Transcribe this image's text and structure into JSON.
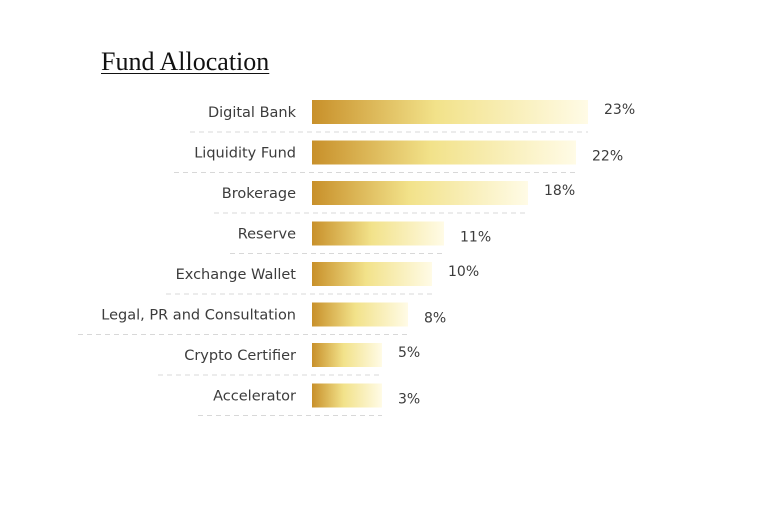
{
  "chart_data": {
    "type": "bar",
    "orientation": "horizontal",
    "title": "Fund Allocation",
    "categories": [
      "Digital Bank",
      "Liquidity Fund",
      "Brokerage",
      "Reserve",
      "Exchange Wallet",
      "Legal, PR and Consultation",
      "Crypto Certifier",
      "Accelerator"
    ],
    "values": [
      23,
      22,
      18,
      11,
      10,
      8,
      5,
      3
    ],
    "value_labels": [
      "23%",
      "22%",
      "18%",
      "11%",
      "10%",
      "8%",
      "5%",
      "3%"
    ],
    "colors": {
      "gradient_start": "#c8902a",
      "gradient_mid": "#f2e28a",
      "gradient_end": "#fffbe6",
      "separator": "#d8d8d8",
      "text": "#3c3c3c"
    },
    "grid": false,
    "legend": "none"
  }
}
